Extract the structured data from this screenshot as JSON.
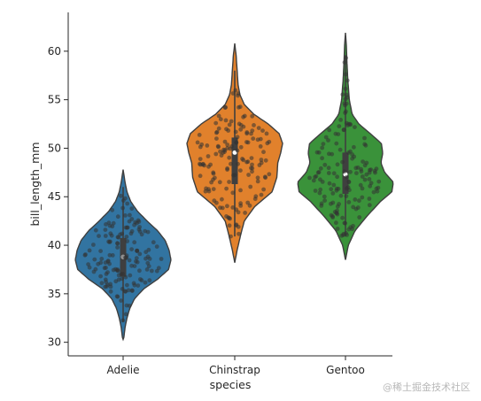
{
  "chart_data": {
    "type": "violin+swarm",
    "xlabel": "species",
    "ylabel": "bill_length_mm",
    "categories": [
      "Adelie",
      "Chinstrap",
      "Gentoo"
    ],
    "colors": [
      "#3274a1",
      "#e1812c",
      "#3a923a"
    ],
    "ylim": [
      28.6,
      64.0
    ],
    "yticks": [
      30,
      35,
      40,
      45,
      50,
      55,
      60
    ],
    "grid": false,
    "legend": "none",
    "violins": [
      {
        "category": "Adelie",
        "color": "#3274a1",
        "range": [
          32.1,
          46.0
        ],
        "quartiles": [
          36.75,
          38.8,
          40.75
        ],
        "profile": [
          [
            30.3,
            0.01
          ],
          [
            31.5,
            0.04
          ],
          [
            32.5,
            0.08
          ],
          [
            33.5,
            0.14
          ],
          [
            34.5,
            0.24
          ],
          [
            35.5,
            0.43
          ],
          [
            36.5,
            0.72
          ],
          [
            37.5,
            0.95
          ],
          [
            38.5,
            1.0
          ],
          [
            39.5,
            0.96
          ],
          [
            40.5,
            0.88
          ],
          [
            41.5,
            0.72
          ],
          [
            42.5,
            0.5
          ],
          [
            43.5,
            0.3
          ],
          [
            44.5,
            0.16
          ],
          [
            45.5,
            0.08
          ],
          [
            46.5,
            0.04
          ],
          [
            47.8,
            0.0
          ]
        ]
      },
      {
        "category": "Chinstrap",
        "color": "#e1812c",
        "range": [
          40.9,
          58.0
        ],
        "quartiles": [
          46.3,
          49.55,
          51.1
        ],
        "profile": [
          [
            38.2,
            0.0
          ],
          [
            39.5,
            0.05
          ],
          [
            41.0,
            0.12
          ],
          [
            42.5,
            0.2
          ],
          [
            44.0,
            0.42
          ],
          [
            45.5,
            0.78
          ],
          [
            47.0,
            0.88
          ],
          [
            48.5,
            0.9
          ],
          [
            49.5,
            0.96
          ],
          [
            50.5,
            1.0
          ],
          [
            51.5,
            0.93
          ],
          [
            52.5,
            0.7
          ],
          [
            53.5,
            0.4
          ],
          [
            54.5,
            0.2
          ],
          [
            55.5,
            0.11
          ],
          [
            56.5,
            0.07
          ],
          [
            58.0,
            0.05
          ],
          [
            59.5,
            0.03
          ],
          [
            60.8,
            0.0
          ]
        ]
      },
      {
        "category": "Gentoo",
        "color": "#3a923a",
        "range": [
          40.9,
          59.6
        ],
        "quartiles": [
          45.3,
          47.3,
          49.55
        ],
        "profile": [
          [
            38.5,
            0.0
          ],
          [
            40.0,
            0.06
          ],
          [
            41.5,
            0.2
          ],
          [
            43.0,
            0.45
          ],
          [
            44.5,
            0.73
          ],
          [
            45.5,
            0.97
          ],
          [
            46.5,
            1.0
          ],
          [
            47.5,
            0.82
          ],
          [
            48.5,
            0.74
          ],
          [
            49.5,
            0.78
          ],
          [
            50.5,
            0.75
          ],
          [
            51.5,
            0.52
          ],
          [
            52.5,
            0.28
          ],
          [
            53.5,
            0.14
          ],
          [
            55.0,
            0.08
          ],
          [
            57.0,
            0.05
          ],
          [
            59.0,
            0.03
          ],
          [
            60.5,
            0.02
          ],
          [
            61.9,
            0.0
          ]
        ]
      }
    ]
  },
  "watermark": "@稀土掘金技术社区"
}
